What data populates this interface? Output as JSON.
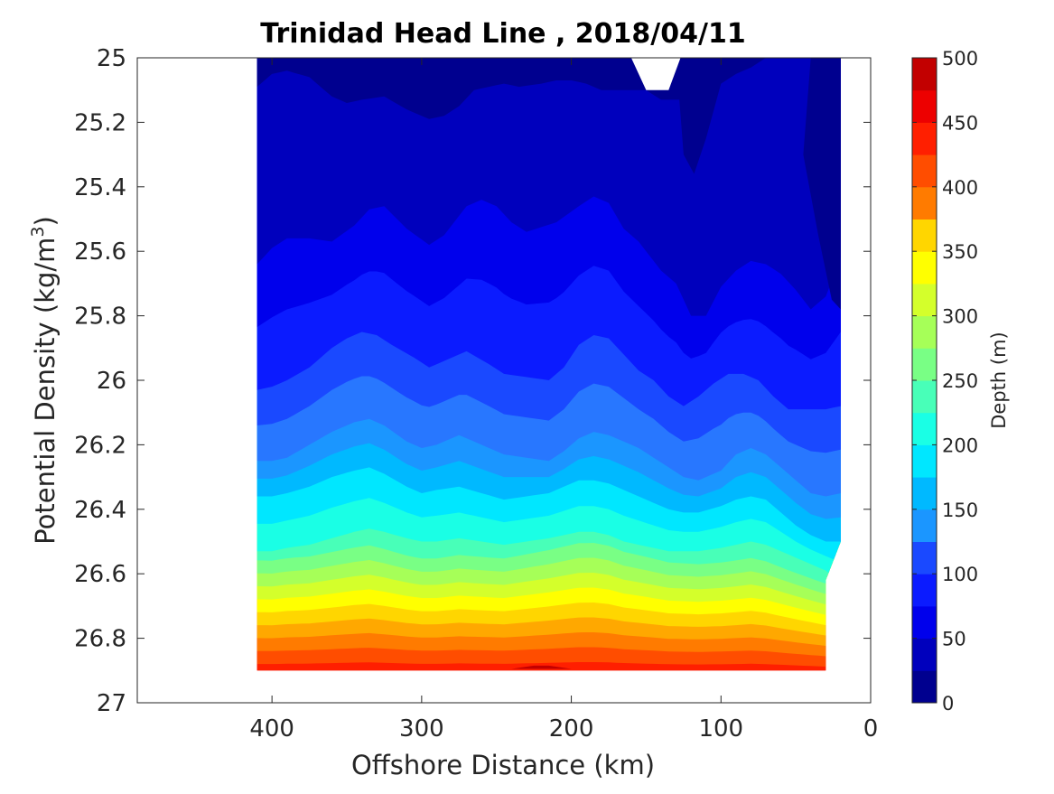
{
  "chart_data": {
    "type": "contourf",
    "title": "Trinidad Head Line , 2018/04/11",
    "xlabel": "Offshore Distance (km)",
    "ylabel": "Potential Density (kg/m",
    "ylabel_superscript": "3",
    "ylabel_suffix": ")",
    "xlim": [
      490,
      0
    ],
    "x_ticks": [
      400,
      300,
      200,
      100,
      0
    ],
    "x_tick_labels": [
      "400",
      "300",
      "200",
      "100",
      "0"
    ],
    "ylim": [
      25,
      27
    ],
    "y_reversed": true,
    "y_ticks": [
      25,
      25.2,
      25.4,
      25.6,
      25.8,
      26,
      26.2,
      26.4,
      26.6,
      26.8,
      27
    ],
    "y_tick_labels": [
      "25",
      "25.2",
      "25.4",
      "25.6",
      "25.8",
      "26",
      "26.2",
      "26.4",
      "26.6",
      "26.8",
      "27"
    ],
    "colorbar": {
      "label": "Depth (m)",
      "range": [
        0,
        500
      ],
      "step": 25,
      "tick_values": [
        0,
        50,
        100,
        150,
        200,
        250,
        300,
        350,
        400,
        450,
        500
      ],
      "tick_labels": [
        "0",
        "50",
        "100",
        "150",
        "200",
        "250",
        "300",
        "350",
        "400",
        "450",
        "500"
      ],
      "colormap": "jet",
      "colors": [
        "#00008f",
        "#0000bd",
        "#0000ec",
        "#0b1bff",
        "#1a49ff",
        "#2877ff",
        "#1b96ff",
        "#00b9ff",
        "#00e7ff",
        "#1affe5",
        "#48ffb8",
        "#79ff85",
        "#a6ff58",
        "#d4ff2b",
        "#ffff00",
        "#ffd600",
        "#ffa800",
        "#ff7b00",
        "#ff4d00",
        "#ff1f00",
        "#ed0000",
        "#c20000"
      ]
    },
    "grid": false,
    "data_extent": {
      "x_offshore_max": 410,
      "x_onshore_min": 20,
      "density_max": 26.9
    },
    "depth_contours": [
      {
        "level": 25,
        "offshore": [
          [
            410,
            25.09
          ],
          [
            400,
            25.05
          ],
          [
            390,
            25.04
          ],
          [
            375,
            25.06
          ],
          [
            360,
            25.12
          ],
          [
            350,
            25.14
          ],
          [
            340,
            25.13
          ],
          [
            325,
            25.12
          ],
          [
            310,
            25.16
          ],
          [
            295,
            25.19
          ],
          [
            285,
            25.18
          ],
          [
            275,
            25.15
          ],
          [
            265,
            25.1
          ],
          [
            255,
            25.09
          ],
          [
            245,
            25.08
          ],
          [
            235,
            25.09
          ],
          [
            220,
            25.08
          ],
          [
            210,
            25.07
          ],
          [
            200,
            25.07
          ],
          [
            190,
            25.08
          ],
          [
            180,
            25.1
          ],
          [
            170,
            25.1
          ],
          [
            160,
            25.1
          ],
          [
            150,
            25.1
          ],
          [
            140,
            25.13
          ],
          [
            135,
            25.13
          ],
          [
            130,
            25.13
          ],
          [
            120,
            25.13
          ],
          [
            110,
            25.1
          ],
          [
            100,
            25.08
          ],
          [
            90,
            25.05
          ],
          [
            80,
            25.03
          ],
          [
            70,
            25.0
          ]
        ],
        "edge": [
          [
            20,
            25.0
          ]
        ]
      },
      {
        "level": 50,
        "offshore": [
          [
            410,
            25.64
          ],
          [
            400,
            25.59
          ],
          [
            390,
            25.56
          ],
          [
            375,
            25.56
          ],
          [
            360,
            25.57
          ],
          [
            345,
            25.52
          ],
          [
            335,
            25.47
          ],
          [
            325,
            25.46
          ],
          [
            310,
            25.53
          ],
          [
            295,
            25.58
          ],
          [
            285,
            25.55
          ],
          [
            270,
            25.46
          ],
          [
            260,
            25.44
          ],
          [
            250,
            25.46
          ],
          [
            240,
            25.51
          ],
          [
            230,
            25.54
          ],
          [
            210,
            25.51
          ],
          [
            195,
            25.46
          ],
          [
            185,
            25.43
          ],
          [
            175,
            25.45
          ],
          [
            165,
            25.53
          ],
          [
            155,
            25.57
          ],
          [
            150,
            25.6
          ],
          [
            140,
            25.66
          ],
          [
            130,
            25.7
          ],
          [
            120,
            25.8
          ],
          [
            110,
            25.8
          ],
          [
            100,
            25.71
          ],
          [
            90,
            25.66
          ],
          [
            80,
            25.63
          ],
          [
            70,
            25.64
          ],
          [
            60,
            25.67
          ],
          [
            50,
            25.72
          ],
          [
            40,
            25.78
          ],
          [
            30,
            25.74
          ],
          [
            20,
            25.62
          ]
        ],
        "edge": [
          [
            20,
            25.0
          ]
        ]
      },
      {
        "level": 100,
        "offshore": [
          [
            410,
            26.03
          ],
          [
            400,
            26.02
          ],
          [
            390,
            26.0
          ],
          [
            375,
            25.96
          ],
          [
            360,
            25.9
          ],
          [
            350,
            25.87
          ],
          [
            340,
            25.85
          ],
          [
            330,
            25.86
          ],
          [
            320,
            25.89
          ],
          [
            305,
            25.93
          ],
          [
            295,
            25.96
          ],
          [
            285,
            25.94
          ],
          [
            270,
            25.91
          ],
          [
            255,
            25.95
          ],
          [
            245,
            25.98
          ],
          [
            230,
            25.99
          ],
          [
            215,
            26.0
          ],
          [
            205,
            25.96
          ],
          [
            195,
            25.89
          ],
          [
            185,
            25.86
          ],
          [
            175,
            25.87
          ],
          [
            165,
            25.92
          ],
          [
            155,
            25.97
          ],
          [
            145,
            26.0
          ],
          [
            135,
            26.05
          ],
          [
            125,
            26.08
          ],
          [
            115,
            26.05
          ],
          [
            105,
            26.01
          ],
          [
            95,
            25.98
          ],
          [
            85,
            25.98
          ],
          [
            75,
            26.0
          ],
          [
            65,
            26.05
          ],
          [
            55,
            26.09
          ],
          [
            45,
            26.09
          ],
          [
            30,
            26.09
          ],
          [
            20,
            26.08
          ]
        ],
        "edge": [
          [
            20,
            25.62
          ]
        ]
      },
      {
        "level": 150,
        "offshore": [
          [
            410,
            26.25
          ],
          [
            400,
            26.25
          ],
          [
            390,
            26.24
          ],
          [
            375,
            26.2
          ],
          [
            360,
            26.16
          ],
          [
            345,
            26.13
          ],
          [
            335,
            26.12
          ],
          [
            325,
            26.14
          ],
          [
            310,
            26.19
          ],
          [
            300,
            26.21
          ],
          [
            290,
            26.2
          ],
          [
            275,
            26.17
          ],
          [
            260,
            26.2
          ],
          [
            245,
            26.23
          ],
          [
            230,
            26.24
          ],
          [
            215,
            26.25
          ],
          [
            205,
            26.22
          ],
          [
            195,
            26.18
          ],
          [
            185,
            26.16
          ],
          [
            175,
            26.17
          ],
          [
            165,
            26.19
          ],
          [
            155,
            26.21
          ],
          [
            145,
            26.24
          ],
          [
            135,
            26.27
          ],
          [
            125,
            26.3
          ],
          [
            115,
            26.31
          ],
          [
            100,
            26.28
          ],
          [
            90,
            26.23
          ],
          [
            80,
            26.21
          ],
          [
            70,
            26.23
          ],
          [
            60,
            26.27
          ],
          [
            50,
            26.31
          ],
          [
            40,
            26.35
          ],
          [
            30,
            26.36
          ],
          [
            20,
            26.35
          ]
        ],
        "edge": [
          [
            20,
            26.08
          ]
        ]
      },
      {
        "level": 200,
        "offshore": [
          [
            410,
            26.36
          ],
          [
            400,
            26.36
          ],
          [
            390,
            26.35
          ],
          [
            375,
            26.33
          ],
          [
            360,
            26.3
          ],
          [
            345,
            26.28
          ],
          [
            335,
            26.27
          ],
          [
            325,
            26.29
          ],
          [
            310,
            26.33
          ],
          [
            300,
            26.35
          ],
          [
            290,
            26.34
          ],
          [
            275,
            26.33
          ],
          [
            260,
            26.35
          ],
          [
            245,
            26.37
          ],
          [
            230,
            26.36
          ],
          [
            215,
            26.35
          ],
          [
            205,
            26.33
          ],
          [
            195,
            26.31
          ],
          [
            185,
            26.31
          ],
          [
            175,
            26.32
          ],
          [
            165,
            26.34
          ],
          [
            155,
            26.36
          ],
          [
            145,
            26.38
          ],
          [
            135,
            26.4
          ],
          [
            125,
            26.41
          ],
          [
            115,
            26.41
          ],
          [
            100,
            26.39
          ],
          [
            90,
            26.37
          ],
          [
            80,
            26.36
          ],
          [
            70,
            26.37
          ],
          [
            60,
            26.41
          ],
          [
            50,
            26.45
          ],
          [
            40,
            26.48
          ],
          [
            30,
            26.5
          ],
          [
            20,
            26.5
          ]
        ],
        "edge": [
          [
            20,
            26.35
          ]
        ]
      },
      {
        "level": 250,
        "offshore": [
          [
            410,
            26.53
          ],
          [
            400,
            26.53
          ],
          [
            390,
            26.52
          ],
          [
            375,
            26.51
          ],
          [
            360,
            26.49
          ],
          [
            345,
            26.47
          ],
          [
            335,
            26.46
          ],
          [
            325,
            26.47
          ],
          [
            310,
            26.49
          ],
          [
            300,
            26.5
          ],
          [
            290,
            26.5
          ],
          [
            275,
            26.49
          ],
          [
            260,
            26.5
          ],
          [
            245,
            26.51
          ],
          [
            230,
            26.5
          ],
          [
            215,
            26.49
          ],
          [
            205,
            26.48
          ],
          [
            195,
            26.47
          ],
          [
            185,
            26.47
          ],
          [
            175,
            26.48
          ],
          [
            165,
            26.5
          ],
          [
            155,
            26.51
          ],
          [
            145,
            26.52
          ],
          [
            135,
            26.53
          ],
          [
            125,
            26.53
          ],
          [
            115,
            26.53
          ],
          [
            100,
            26.52
          ],
          [
            90,
            26.51
          ],
          [
            80,
            26.5
          ],
          [
            70,
            26.51
          ],
          [
            60,
            26.53
          ],
          [
            50,
            26.55
          ],
          [
            40,
            26.57
          ],
          [
            30,
            26.59
          ],
          [
            25,
            26.61
          ]
        ],
        "edge": [
          [
            20,
            26.5
          ]
        ]
      }
    ],
    "notes_missing": "Blank wedge near x=130-160 km at top (density 25.0-25.1)"
  }
}
